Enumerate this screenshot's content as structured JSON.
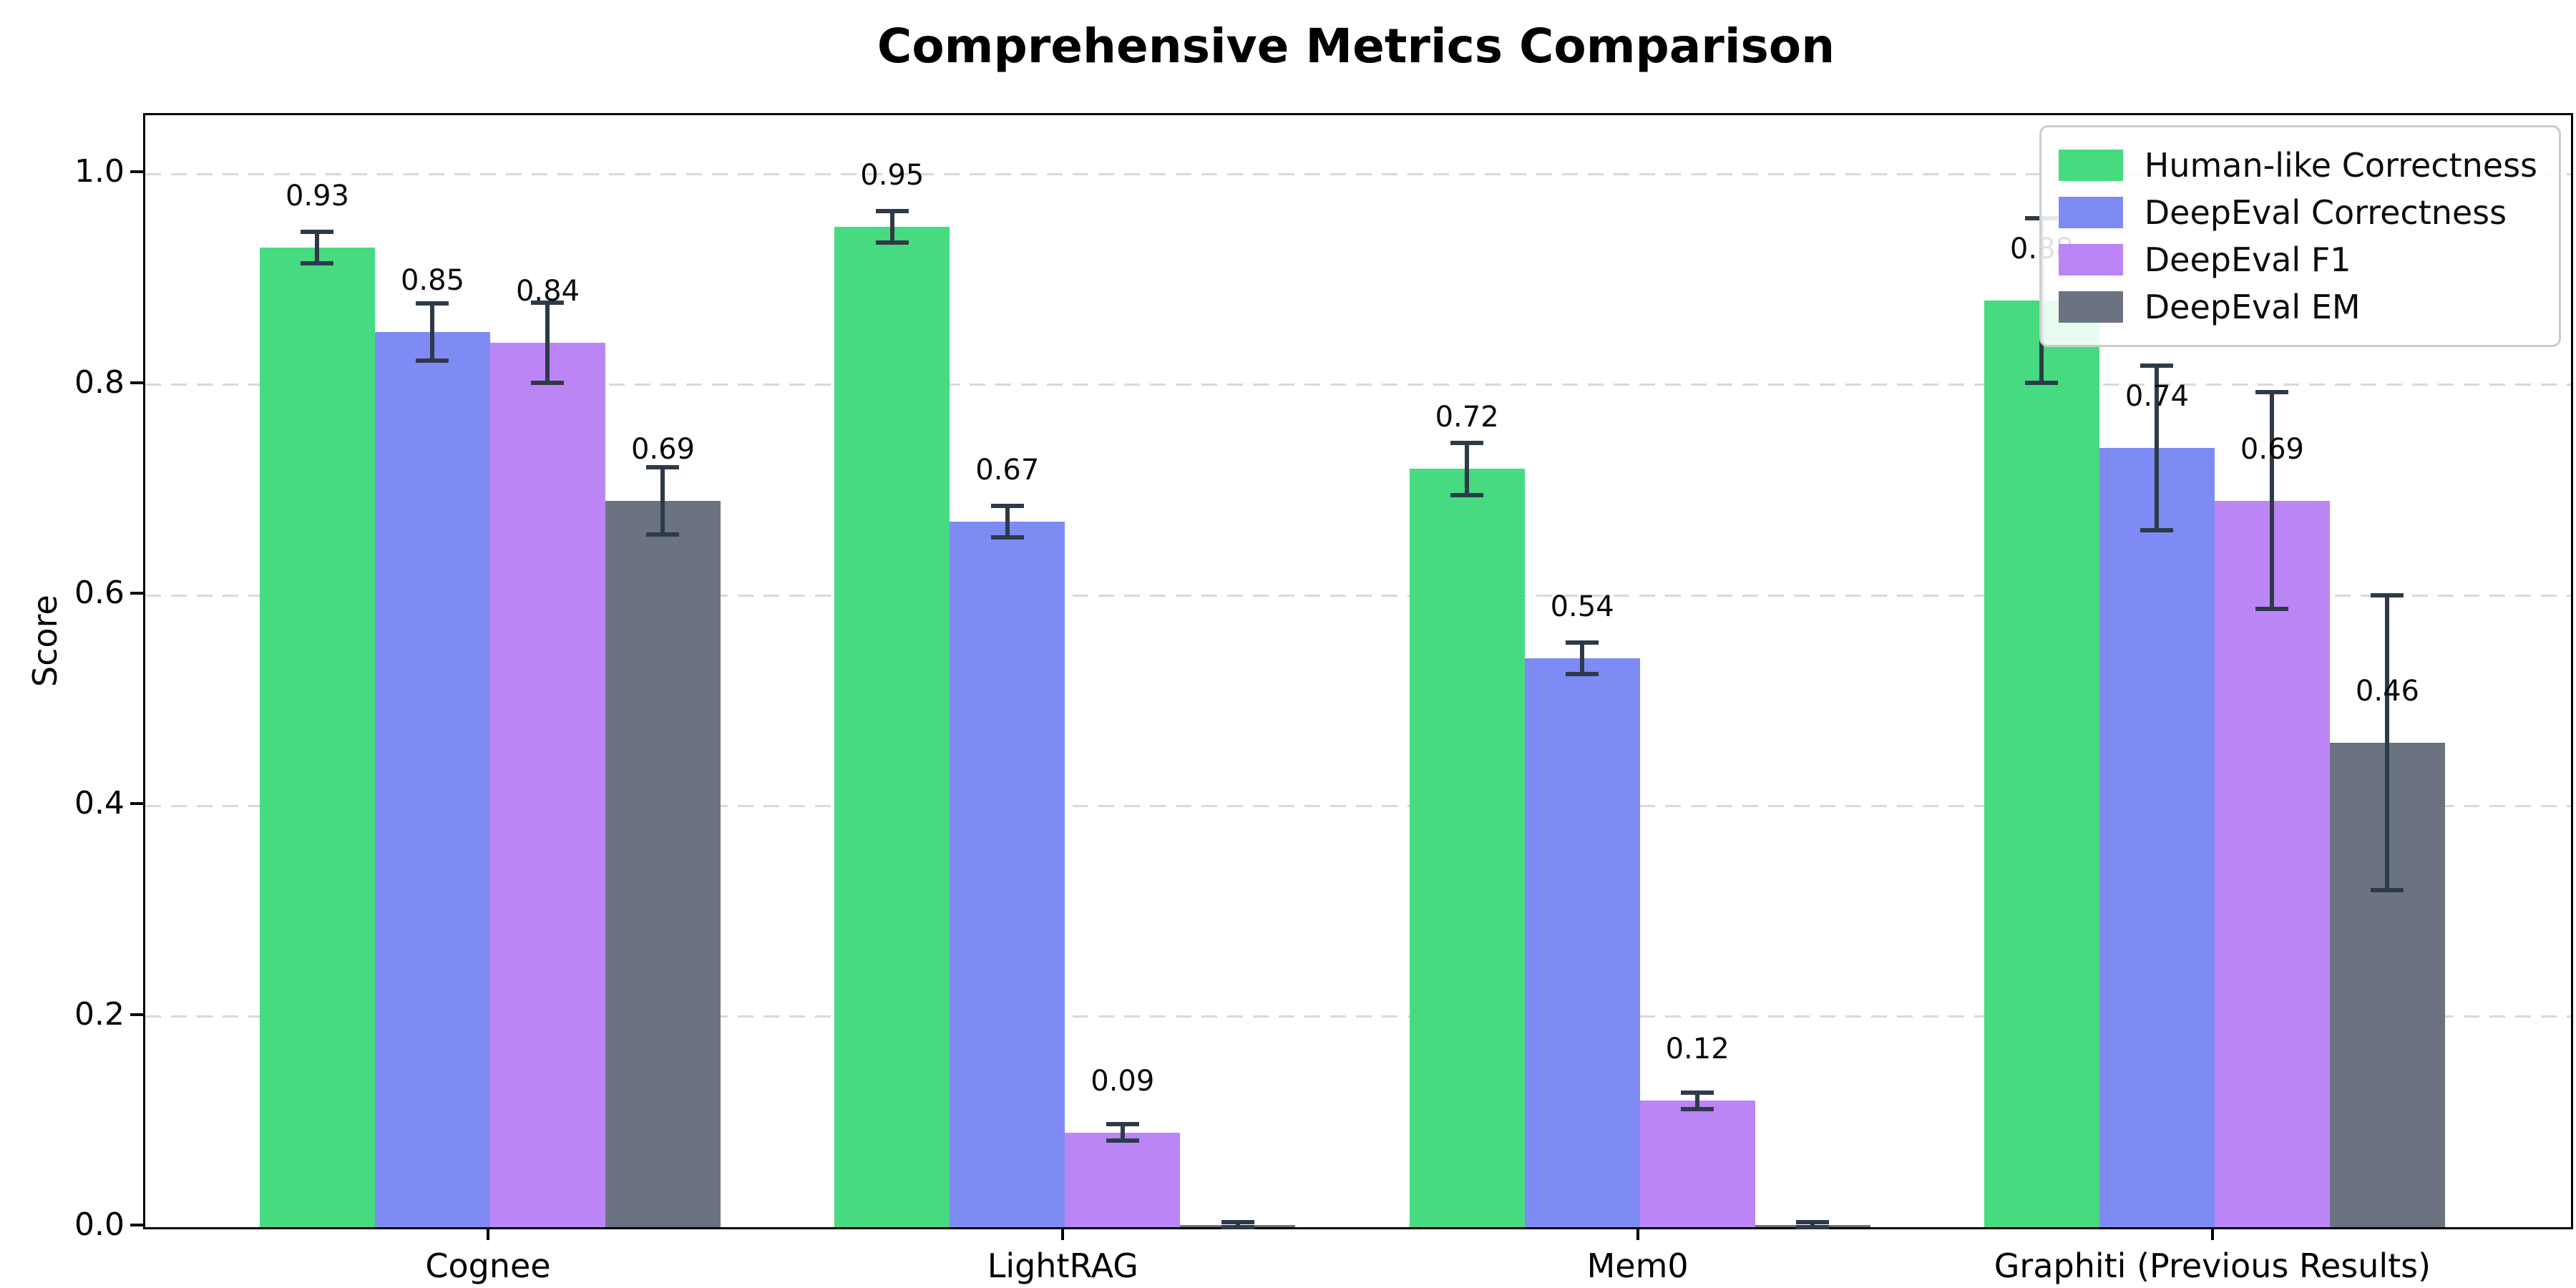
{
  "title": "Comprehensive Metrics Comparison",
  "chart_data": {
    "type": "bar",
    "title": "Comprehensive Metrics Comparison",
    "xlabel": "",
    "ylabel": "Score",
    "categories": [
      "Cognee",
      "LightRAG",
      "Mem0",
      "Graphiti (Previous Results)"
    ],
    "series": [
      {
        "name": "Human-like Correctness",
        "color": "#46db80",
        "values": [
          0.93,
          0.95,
          0.72,
          0.88
        ],
        "errors": [
          0.015,
          0.015,
          0.025,
          0.078
        ],
        "labels": [
          "0.93",
          "0.95",
          "0.72",
          "0.88"
        ]
      },
      {
        "name": "DeepEval Correctness",
        "color": "#7e8bf5",
        "values": [
          0.85,
          0.67,
          0.54,
          0.74
        ],
        "errors": [
          0.027,
          0.015,
          0.015,
          0.078
        ],
        "labels": [
          "0.85",
          "0.67",
          "0.54",
          "0.74"
        ]
      },
      {
        "name": "DeepEval F1",
        "color": "#bc85f6",
        "values": [
          0.84,
          0.09,
          0.12,
          0.69
        ],
        "errors": [
          0.038,
          0.008,
          0.008,
          0.103
        ],
        "labels": [
          "0.84",
          "0.09",
          "0.12",
          "0.69"
        ]
      },
      {
        "name": "DeepEval EM",
        "color": "#6b7380",
        "values": [
          0.69,
          0.002,
          0.002,
          0.46
        ],
        "errors": [
          0.032,
          0.003,
          0.003,
          0.14
        ],
        "labels": [
          "0.69",
          "",
          "",
          "0.46"
        ]
      }
    ],
    "ytick_labels": [
      "0.0",
      "0.2",
      "0.4",
      "0.6",
      "0.8",
      "1.0"
    ],
    "ytick_values": [
      0.0,
      0.2,
      0.4,
      0.6,
      0.8,
      1.0
    ],
    "ylim": [
      0,
      1.056
    ],
    "grid": "horizontal-dashed",
    "legend_position": "upper right",
    "bar_width": 0.2,
    "colors": {
      "errorbar": "#2e3a48",
      "gridline": "#d9d9d9",
      "axis": "#000000",
      "background": "#ffffff"
    }
  }
}
